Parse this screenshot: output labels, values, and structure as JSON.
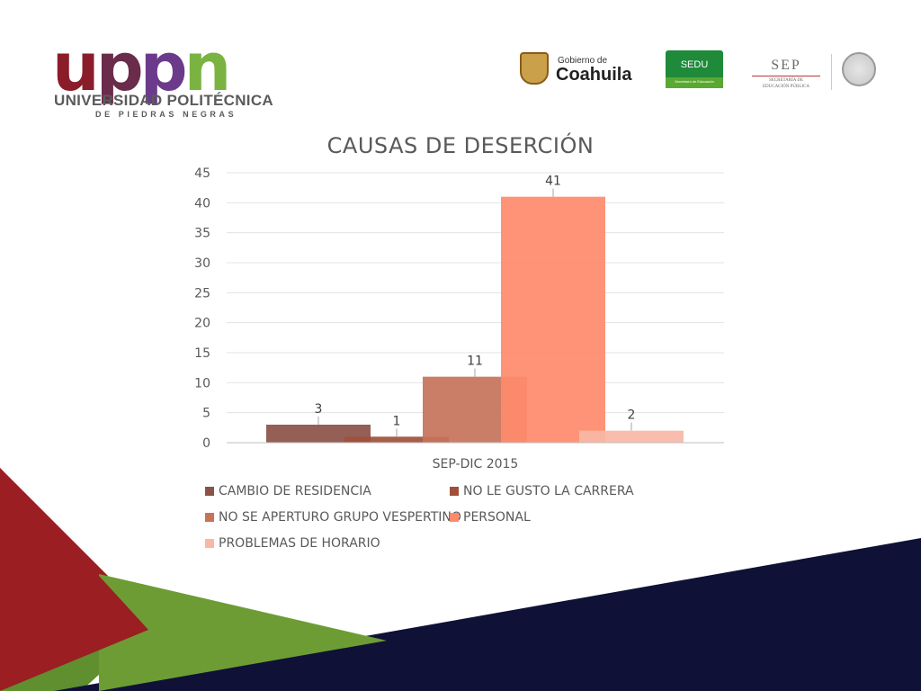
{
  "header": {
    "uppn_letters": [
      "u",
      "p",
      "p",
      "n"
    ],
    "university_name": "UNIVERSIDAD POLITÉCNICA",
    "university_sub": "DE PIEDRAS NEGRAS",
    "coahuila_small": "Gobierno de",
    "coahuila_name": "Coahuila",
    "sedu_title": "SEDU",
    "sedu_sub": "Secretaría de Educación",
    "sep_title": "SEP",
    "sep_sub1": "SECRETARÍA DE",
    "sep_sub2": "EDUCACIÓN PÚBLICA"
  },
  "colors": {
    "brand_red": "#8b1c2a",
    "brand_purple": "#6c3a8a",
    "brand_green": "#7ab342",
    "navy": "#0f1236"
  },
  "chart_data": {
    "type": "bar",
    "title": "CAUSAS DE DESERCIÓN",
    "categories": [
      "SEP-DIC 2015"
    ],
    "series": [
      {
        "name": "CAMBIO DE RESIDENCIA",
        "values": [
          3
        ],
        "color": "#8b5248"
      },
      {
        "name": "NO LE GUSTO LA CARRERA",
        "values": [
          1
        ],
        "color": "#a0503a"
      },
      {
        "name": "NO SE APERTURO GRUPO VESPERTINO",
        "values": [
          11
        ],
        "color": "#c7735a"
      },
      {
        "name": "PERSONAL",
        "values": [
          41
        ],
        "color": "#ff8a6b"
      },
      {
        "name": "PROBLEMAS DE HORARIO",
        "values": [
          2
        ],
        "color": "#f9b7a6"
      }
    ],
    "ylim": [
      0,
      45
    ],
    "yticks": [
      0,
      5,
      10,
      15,
      20,
      25,
      30,
      35,
      40,
      45
    ],
    "xlabel": "",
    "ylabel": "",
    "grid": true,
    "legend": "bottom",
    "data_labels": [
      "3",
      "1",
      "11",
      "41",
      "2"
    ]
  }
}
